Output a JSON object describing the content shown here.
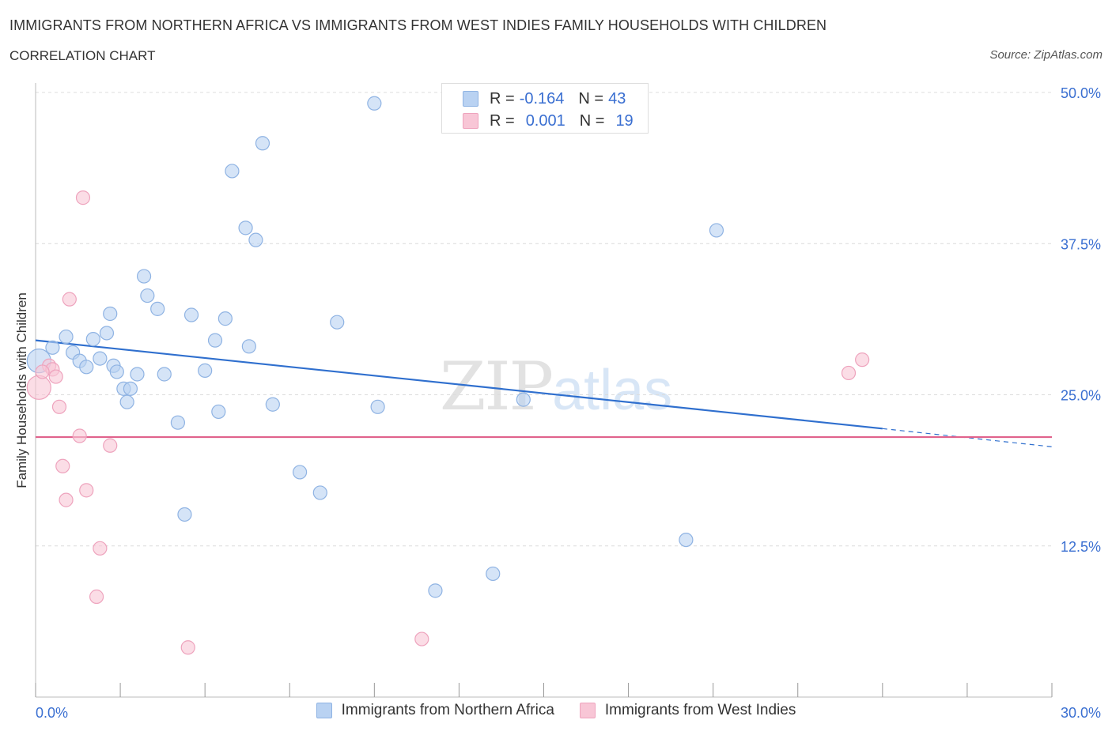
{
  "title": "IMMIGRANTS FROM NORTHERN AFRICA VS IMMIGRANTS FROM WEST INDIES FAMILY HOUSEHOLDS WITH CHILDREN",
  "subtitle": "CORRELATION CHART",
  "source": "Source: ZipAtlas.com",
  "watermark": {
    "zip": "ZIP",
    "atlas": "atlas"
  },
  "colors": {
    "blue_fill": "#b9d2f2",
    "blue_stroke": "#8fb3e3",
    "blue_line": "#2f6fce",
    "pink_fill": "#f8c6d6",
    "pink_stroke": "#eea3bd",
    "pink_line": "#e0628c",
    "axis_text": "#3a6fd1",
    "grid": "#dcdcdc"
  },
  "legend": {
    "rows": [
      {
        "r_label": "R =",
        "r_value": "-0.164",
        "n_label": "N =",
        "n_value": "43",
        "color": "#b9d2f2"
      },
      {
        "r_label": "R =",
        "r_value": "0.001",
        "n_label": "N =",
        "n_value": "19",
        "color": "#f8c6d6"
      }
    ]
  },
  "bottom_legend": [
    "Immigrants from Northern Africa",
    "Immigrants from West Indies"
  ],
  "chart_data": {
    "type": "scatter",
    "title": "IMMIGRANTS FROM NORTHERN AFRICA VS IMMIGRANTS FROM WEST INDIES FAMILY HOUSEHOLDS WITH CHILDREN",
    "xlabel": "",
    "ylabel": "Family Households with Children",
    "xlim": [
      0,
      30
    ],
    "ylim": [
      0,
      50
    ],
    "x_tick_labels": [
      "0.0%",
      "30.0%"
    ],
    "y_ticks": [
      12.5,
      25.0,
      37.5,
      50.0
    ],
    "y_tick_labels": [
      "12.5%",
      "25.0%",
      "37.5%",
      "50.0%"
    ],
    "grid": true,
    "legend_position": "top-center",
    "series": [
      {
        "name": "Immigrants from Northern Africa",
        "color": "#b9d2f2",
        "points": [
          [
            0.1,
            27.8
          ],
          [
            0.5,
            28.9
          ],
          [
            0.9,
            29.8
          ],
          [
            1.1,
            28.5
          ],
          [
            1.3,
            27.8
          ],
          [
            1.5,
            27.3
          ],
          [
            1.7,
            29.6
          ],
          [
            1.9,
            28.0
          ],
          [
            2.1,
            30.1
          ],
          [
            2.3,
            27.4
          ],
          [
            2.2,
            31.7
          ],
          [
            2.4,
            26.9
          ],
          [
            2.6,
            25.5
          ],
          [
            2.7,
            24.4
          ],
          [
            2.8,
            25.5
          ],
          [
            3.0,
            26.7
          ],
          [
            3.2,
            34.8
          ],
          [
            3.3,
            33.2
          ],
          [
            3.6,
            32.1
          ],
          [
            3.8,
            26.7
          ],
          [
            4.2,
            22.7
          ],
          [
            4.6,
            31.6
          ],
          [
            5.0,
            27.0
          ],
          [
            5.3,
            29.5
          ],
          [
            5.4,
            23.6
          ],
          [
            5.6,
            31.3
          ],
          [
            5.8,
            43.5
          ],
          [
            6.2,
            38.8
          ],
          [
            6.3,
            29.0
          ],
          [
            6.5,
            37.8
          ],
          [
            6.7,
            45.8
          ],
          [
            7.0,
            24.2
          ],
          [
            7.8,
            18.6
          ],
          [
            8.4,
            16.9
          ],
          [
            8.9,
            31.0
          ],
          [
            10.0,
            49.1
          ],
          [
            10.1,
            24.0
          ],
          [
            11.8,
            8.8
          ],
          [
            13.5,
            10.2
          ],
          [
            14.4,
            24.6
          ],
          [
            19.2,
            13.0
          ],
          [
            20.1,
            38.6
          ],
          [
            4.4,
            15.1
          ]
        ]
      },
      {
        "name": "Immigrants from West Indies",
        "color": "#f8c6d6",
        "points": [
          [
            0.1,
            25.6
          ],
          [
            0.4,
            27.4
          ],
          [
            0.5,
            27.1
          ],
          [
            0.6,
            26.5
          ],
          [
            0.7,
            24.0
          ],
          [
            0.8,
            19.1
          ],
          [
            0.9,
            16.3
          ],
          [
            1.0,
            32.9
          ],
          [
            1.3,
            21.6
          ],
          [
            1.4,
            41.3
          ],
          [
            1.5,
            17.1
          ],
          [
            1.8,
            8.3
          ],
          [
            1.9,
            12.3
          ],
          [
            2.2,
            20.8
          ],
          [
            4.5,
            4.1
          ],
          [
            11.4,
            4.8
          ],
          [
            24.0,
            26.8
          ],
          [
            24.4,
            27.9
          ],
          [
            0.2,
            26.9
          ]
        ]
      }
    ],
    "trendlines": [
      {
        "series": "Immigrants from Northern Africa",
        "x": [
          0,
          25
        ],
        "y": [
          29.5,
          22.2
        ],
        "dashed_extension_x": [
          25,
          30
        ],
        "dashed_extension_y": [
          22.2,
          20.7
        ]
      },
      {
        "series": "Immigrants from West Indies",
        "x": [
          0,
          30
        ],
        "y": [
          21.5,
          21.5
        ]
      }
    ]
  }
}
